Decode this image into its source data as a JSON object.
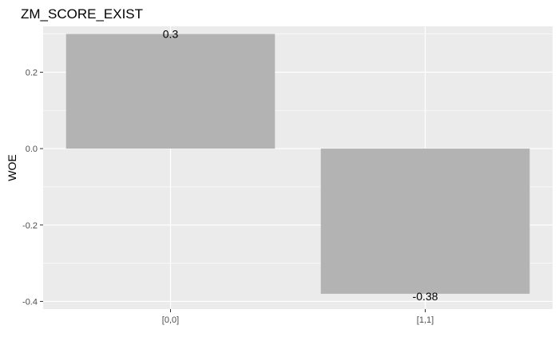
{
  "chart_data": {
    "type": "bar",
    "title": "ZM_SCORE_EXIST",
    "xlabel": "",
    "ylabel": "WOE",
    "categories": [
      "[0,0]",
      "[1,1]"
    ],
    "values": [
      0.3,
      -0.38
    ],
    "data_labels": [
      "0.3",
      "-0.38"
    ],
    "ylim": [
      -0.42,
      0.32
    ],
    "yticks": [
      0.2,
      0.0,
      -0.2,
      -0.4
    ],
    "ytick_labels": [
      "0.2",
      "0.0",
      "-0.2",
      "-0.4"
    ],
    "grid": true,
    "legend": "none",
    "bar_color": "#b3b3b3",
    "panel_color": "#ebebeb",
    "grid_color": "#ffffff"
  }
}
